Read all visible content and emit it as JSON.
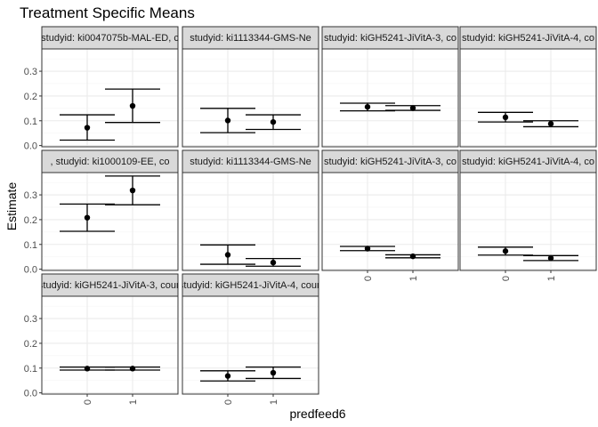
{
  "chart_data": {
    "type": "errorbar",
    "title": "Treatment Specific Means",
    "xlabel": "predfeed6",
    "ylabel": "Estimate",
    "categories": [
      "0",
      "1"
    ],
    "ylim": [
      -0.005,
      0.39
    ],
    "yticks": [
      0.0,
      0.1,
      0.2,
      0.3
    ],
    "ytick_labels": [
      "0.0",
      "0.1",
      "0.2",
      "0.3"
    ],
    "grid": true,
    "ncol": 4,
    "panels": [
      {
        "label": "studyid: ki0047075b-MAL-ED, c",
        "points": [
          {
            "x": "0",
            "y": 0.072,
            "lower": 0.022,
            "upper": 0.124
          },
          {
            "x": "1",
            "y": 0.16,
            "lower": 0.093,
            "upper": 0.228
          }
        ]
      },
      {
        "label": "studyid: ki1113344-GMS-Ne",
        "points": [
          {
            "x": "0",
            "y": 0.101,
            "lower": 0.052,
            "upper": 0.15
          },
          {
            "x": "1",
            "y": 0.095,
            "lower": 0.065,
            "upper": 0.124
          }
        ]
      },
      {
        "label": "studyid: kiGH5241-JiVitA-3, co",
        "points": [
          {
            "x": "0",
            "y": 0.156,
            "lower": 0.14,
            "upper": 0.171
          },
          {
            "x": "1",
            "y": 0.151,
            "lower": 0.142,
            "upper": 0.161
          }
        ]
      },
      {
        "label": "studyid: kiGH5241-JiVitA-4, co",
        "points": [
          {
            "x": "0",
            "y": 0.114,
            "lower": 0.095,
            "upper": 0.134
          },
          {
            "x": "1",
            "y": 0.088,
            "lower": 0.076,
            "upper": 0.1
          }
        ]
      },
      {
        "label": ", studyid: ki1000109-EE, co",
        "points": [
          {
            "x": "0",
            "y": 0.208,
            "lower": 0.153,
            "upper": 0.263
          },
          {
            "x": "1",
            "y": 0.318,
            "lower": 0.26,
            "upper": 0.376
          }
        ]
      },
      {
        "label": "studyid: ki1113344-GMS-Ne",
        "points": [
          {
            "x": "0",
            "y": 0.058,
            "lower": 0.02,
            "upper": 0.098
          },
          {
            "x": "1",
            "y": 0.027,
            "lower": 0.012,
            "upper": 0.043
          }
        ]
      },
      {
        "label": "studyid: kiGH5241-JiVitA-3, co",
        "points": [
          {
            "x": "0",
            "y": 0.083,
            "lower": 0.075,
            "upper": 0.092
          },
          {
            "x": "1",
            "y": 0.052,
            "lower": 0.046,
            "upper": 0.058
          }
        ]
      },
      {
        "label": "studyid: kiGH5241-JiVitA-4, co",
        "points": [
          {
            "x": "0",
            "y": 0.073,
            "lower": 0.057,
            "upper": 0.089
          },
          {
            "x": "1",
            "y": 0.045,
            "lower": 0.035,
            "upper": 0.055
          }
        ]
      },
      {
        "label": "studyid: kiGH5241-JiVitA-3, coun",
        "points": [
          {
            "x": "0",
            "y": 0.098,
            "lower": 0.092,
            "upper": 0.104
          },
          {
            "x": "1",
            "y": 0.098,
            "lower": 0.092,
            "upper": 0.104
          }
        ]
      },
      {
        "label": "studyid: kiGH5241-JiVitA-4, coun",
        "points": [
          {
            "x": "0",
            "y": 0.068,
            "lower": 0.048,
            "upper": 0.089
          },
          {
            "x": "1",
            "y": 0.081,
            "lower": 0.058,
            "upper": 0.104
          }
        ]
      }
    ]
  }
}
